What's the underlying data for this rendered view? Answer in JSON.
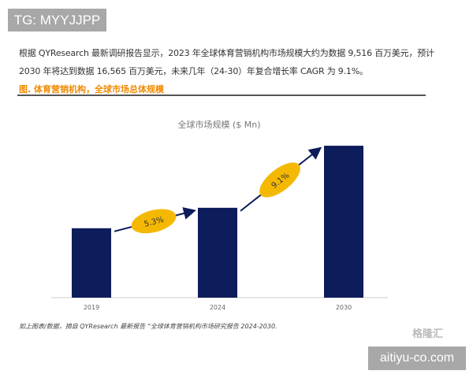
{
  "watermark_top": "TG: MYYJJPP",
  "paragraph": "根据 QYResearch 最新调研报告显示，2023 年全球体育营销机构市场规模大约为数据 9,516 百万美元，预计 2030 年将达到数据 16,565 百万美元，未来几年（24-30）年复合增长率 CAGR 为 9.1%。",
  "figure_caption": "图.  体育营销机构，全球市场总体规模",
  "source_note": "如上图表/数据，摘自 QYResearch 最新报告 “全球体育营销机构市场研究报告 2024-2030.",
  "watermark_logo": "格隆汇",
  "watermark_bottom": "aitiyu-co.com",
  "chart_data": {
    "type": "bar",
    "title": "全球市场规模 ($ Mn)",
    "categories": [
      "2019",
      "2024",
      "2030"
    ],
    "values": [
      7570,
      9800,
      16565
    ],
    "ylim": [
      0,
      17000
    ],
    "bar_color": "#0d1c5a",
    "grid": false,
    "annotations": [
      {
        "label": "5.3%",
        "from": "2019",
        "to": "2024"
      },
      {
        "label": "9.1%",
        "from": "2024",
        "to": "2030"
      }
    ],
    "annotation_color": "#f5b800"
  }
}
